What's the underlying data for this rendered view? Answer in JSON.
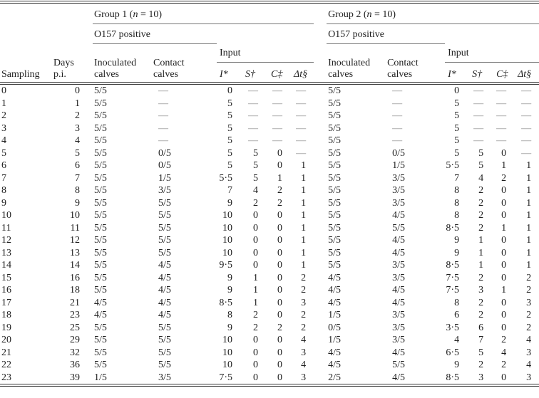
{
  "table": {
    "title_row": {
      "group1": {
        "prefix": "Group 1 (",
        "n_italic": "n",
        "suffix": " = 10)"
      },
      "group2": {
        "prefix": "Group 2 (",
        "n_italic": "n",
        "suffix": " = 10)"
      }
    },
    "headers": {
      "sampling": "Sampling",
      "days_line1": "Days",
      "days_line2": "p.i.",
      "o157_positive": "O157 positive",
      "inoculated_line1": "Inoculated",
      "inoculated_line2": "calves",
      "contact_line1": "Contact",
      "contact_line2": "calves",
      "input": "Input",
      "input_cols": [
        "I*",
        "S†",
        "C‡",
        "Δt§"
      ]
    },
    "rows": [
      [
        "0",
        "0",
        "5/5",
        "—",
        "0",
        "—",
        "—",
        "—",
        "5/5",
        "—",
        "0",
        "—",
        "—",
        "—"
      ],
      [
        "1",
        "1",
        "5/5",
        "—",
        "5",
        "—",
        "—",
        "—",
        "5/5",
        "—",
        "5",
        "—",
        "—",
        "—"
      ],
      [
        "2",
        "2",
        "5/5",
        "—",
        "5",
        "—",
        "—",
        "—",
        "5/5",
        "—",
        "5",
        "—",
        "—",
        "—"
      ],
      [
        "3",
        "3",
        "5/5",
        "—",
        "5",
        "—",
        "—",
        "—",
        "5/5",
        "—",
        "5",
        "—",
        "—",
        "—"
      ],
      [
        "4",
        "4",
        "5/5",
        "—",
        "5",
        "—",
        "—",
        "—",
        "5/5",
        "—",
        "5",
        "—",
        "—",
        "—"
      ],
      [
        "5",
        "5",
        "5/5",
        "0/5",
        "5",
        "5",
        "0",
        "—",
        "5/5",
        "0/5",
        "5",
        "5",
        "0",
        "—"
      ],
      [
        "6",
        "6",
        "5/5",
        "0/5",
        "5",
        "5",
        "0",
        "1",
        "5/5",
        "1/5",
        "5·5",
        "5",
        "1",
        "1"
      ],
      [
        "7",
        "7",
        "5/5",
        "1/5",
        "5·5",
        "5",
        "1",
        "1",
        "5/5",
        "3/5",
        "7",
        "4",
        "2",
        "1"
      ],
      [
        "8",
        "8",
        "5/5",
        "3/5",
        "7",
        "4",
        "2",
        "1",
        "5/5",
        "3/5",
        "8",
        "2",
        "0",
        "1"
      ],
      [
        "9",
        "9",
        "5/5",
        "5/5",
        "9",
        "2",
        "2",
        "1",
        "5/5",
        "3/5",
        "8",
        "2",
        "0",
        "1"
      ],
      [
        "10",
        "10",
        "5/5",
        "5/5",
        "10",
        "0",
        "0",
        "1",
        "5/5",
        "4/5",
        "8",
        "2",
        "0",
        "1"
      ],
      [
        "11",
        "11",
        "5/5",
        "5/5",
        "10",
        "0",
        "0",
        "1",
        "5/5",
        "5/5",
        "8·5",
        "2",
        "1",
        "1"
      ],
      [
        "12",
        "12",
        "5/5",
        "5/5",
        "10",
        "0",
        "0",
        "1",
        "5/5",
        "4/5",
        "9",
        "1",
        "0",
        "1"
      ],
      [
        "13",
        "13",
        "5/5",
        "5/5",
        "10",
        "0",
        "0",
        "1",
        "5/5",
        "4/5",
        "9",
        "1",
        "0",
        "1"
      ],
      [
        "14",
        "14",
        "5/5",
        "4/5",
        "9·5",
        "0",
        "0",
        "1",
        "5/5",
        "3/5",
        "8·5",
        "1",
        "0",
        "1"
      ],
      [
        "15",
        "16",
        "5/5",
        "4/5",
        "9",
        "1",
        "0",
        "2",
        "4/5",
        "3/5",
        "7·5",
        "2",
        "0",
        "2"
      ],
      [
        "16",
        "18",
        "5/5",
        "4/5",
        "9",
        "1",
        "0",
        "2",
        "4/5",
        "4/5",
        "7·5",
        "3",
        "1",
        "2"
      ],
      [
        "17",
        "21",
        "4/5",
        "4/5",
        "8·5",
        "1",
        "0",
        "3",
        "4/5",
        "4/5",
        "8",
        "2",
        "0",
        "3"
      ],
      [
        "18",
        "23",
        "4/5",
        "4/5",
        "8",
        "2",
        "0",
        "2",
        "1/5",
        "3/5",
        "6",
        "2",
        "0",
        "2"
      ],
      [
        "19",
        "25",
        "5/5",
        "5/5",
        "9",
        "2",
        "2",
        "2",
        "0/5",
        "3/5",
        "3·5",
        "6",
        "0",
        "2"
      ],
      [
        "20",
        "29",
        "5/5",
        "5/5",
        "10",
        "0",
        "0",
        "4",
        "1/5",
        "3/5",
        "4",
        "7",
        "2",
        "4"
      ],
      [
        "21",
        "32",
        "5/5",
        "5/5",
        "10",
        "0",
        "0",
        "3",
        "4/5",
        "4/5",
        "6·5",
        "5",
        "4",
        "3"
      ],
      [
        "22",
        "36",
        "5/5",
        "5/5",
        "10",
        "0",
        "0",
        "4",
        "4/5",
        "5/5",
        "9",
        "2",
        "2",
        "4"
      ],
      [
        "23",
        "39",
        "1/5",
        "3/5",
        "7·5",
        "0",
        "0",
        "3",
        "2/5",
        "4/5",
        "8·5",
        "3",
        "0",
        "3"
      ]
    ]
  }
}
